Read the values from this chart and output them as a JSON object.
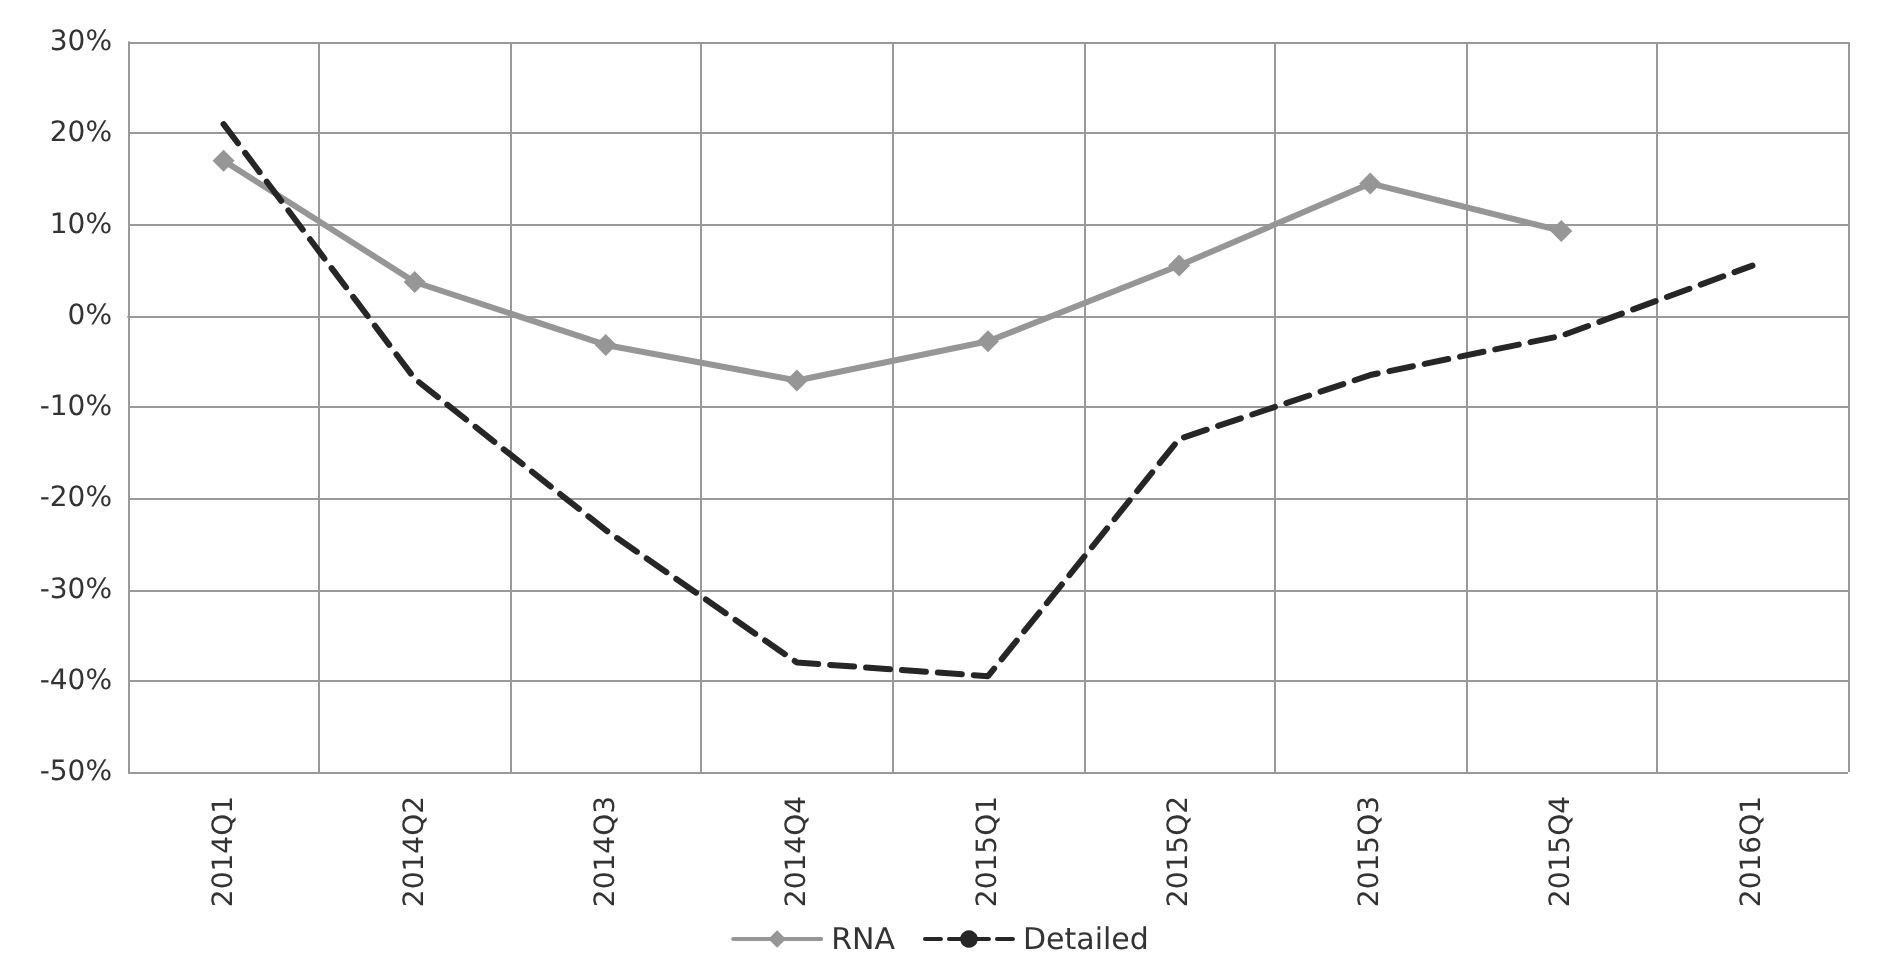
{
  "chart_data": {
    "type": "line",
    "categories": [
      "2014Q1",
      "2014Q2",
      "2014Q3",
      "2014Q4",
      "2015Q1",
      "2015Q2",
      "2015Q3",
      "2015Q4",
      "2016Q1"
    ],
    "series": [
      {
        "name": "RNA",
        "color": "#969696",
        "marker": "diamond",
        "line_style": "solid",
        "values": [
          17,
          3.7,
          -3.2,
          -7.1,
          -2.8,
          5.5,
          14.5,
          9.3,
          null
        ]
      },
      {
        "name": "Detailed",
        "color": "#262626",
        "marker": "none",
        "line_style": "dashed",
        "values": [
          21,
          -6.9,
          -23.5,
          -38,
          -39.5,
          -13.5,
          -6.5,
          -2.2,
          5.5
        ]
      }
    ],
    "ylim": [
      -50,
      30
    ],
    "yticks": [
      {
        "value": -50,
        "label": "-50%"
      },
      {
        "value": -40,
        "label": "-40%"
      },
      {
        "value": -30,
        "label": "-30%"
      },
      {
        "value": -20,
        "label": "-20%"
      },
      {
        "value": -10,
        "label": "-10%"
      },
      {
        "value": 0,
        "label": "0%"
      },
      {
        "value": 10,
        "label": "10%"
      },
      {
        "value": 20,
        "label": "20%"
      },
      {
        "value": 30,
        "label": "30%"
      }
    ],
    "grid": true,
    "legend": "bottom"
  }
}
